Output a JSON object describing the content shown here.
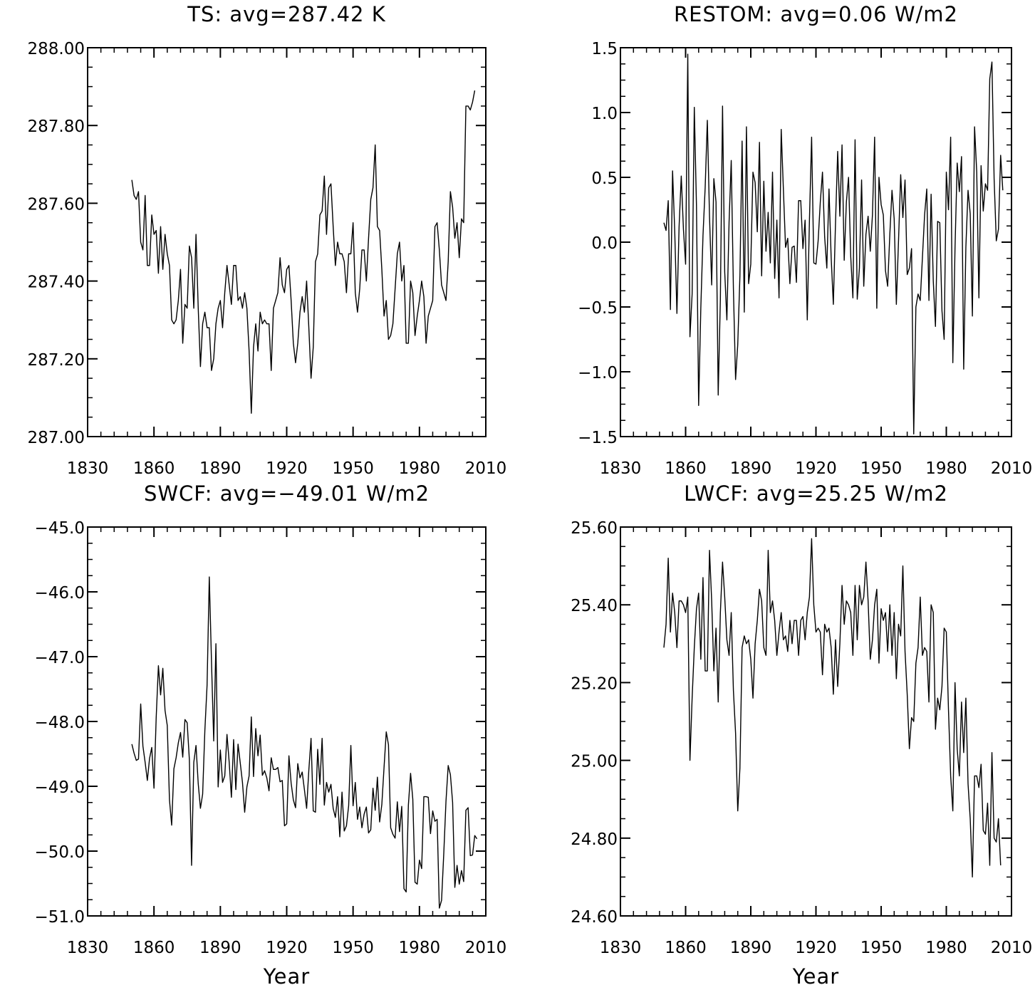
{
  "chart_data": [
    {
      "type": "line",
      "title": "TS: avg=287.42 K",
      "xlabel": "",
      "ylabel": "",
      "xlim": [
        1830,
        2010
      ],
      "ylim": [
        287.0,
        288.0
      ],
      "x_ticks": [
        "1830",
        "1860",
        "1890",
        "1920",
        "1950",
        "1980",
        "2010"
      ],
      "y_ticks": [
        "287.00",
        "287.20",
        "287.40",
        "287.60",
        "287.80",
        "288.00"
      ],
      "y_tick_values": [
        287.0,
        287.2,
        287.4,
        287.6,
        287.8,
        288.0
      ],
      "grid": false,
      "x_start": 1850,
      "values": [
        287.66,
        287.62,
        287.61,
        287.63,
        287.5,
        287.48,
        287.62,
        287.44,
        287.44,
        287.57,
        287.52,
        287.53,
        287.42,
        287.54,
        287.43,
        287.52,
        287.47,
        287.44,
        287.3,
        287.29,
        287.3,
        287.35,
        287.43,
        287.24,
        287.34,
        287.33,
        287.49,
        287.46,
        287.33,
        287.52,
        287.33,
        287.18,
        287.29,
        287.32,
        287.28,
        287.28,
        287.17,
        287.2,
        287.29,
        287.33,
        287.35,
        287.28,
        287.37,
        287.44,
        287.39,
        287.34,
        287.44,
        287.44,
        287.35,
        287.36,
        287.33,
        287.37,
        287.33,
        287.22,
        287.06,
        287.23,
        287.29,
        287.22,
        287.32,
        287.29,
        287.3,
        287.29,
        287.29,
        287.17,
        287.33,
        287.35,
        287.37,
        287.46,
        287.39,
        287.37,
        287.43,
        287.44,
        287.35,
        287.24,
        287.19,
        287.24,
        287.32,
        287.36,
        287.32,
        287.4,
        287.28,
        287.15,
        287.23,
        287.45,
        287.47,
        287.57,
        287.58,
        287.67,
        287.52,
        287.64,
        287.65,
        287.54,
        287.44,
        287.5,
        287.47,
        287.47,
        287.45,
        287.37,
        287.47,
        287.47,
        287.55,
        287.37,
        287.32,
        287.38,
        287.48,
        287.48,
        287.4,
        287.51,
        287.61,
        287.64,
        287.75,
        287.54,
        287.53,
        287.43,
        287.31,
        287.35,
        287.25,
        287.26,
        287.29,
        287.38,
        287.47,
        287.5,
        287.4,
        287.44,
        287.24,
        287.24,
        287.4,
        287.37,
        287.26,
        287.31,
        287.35,
        287.4,
        287.36,
        287.24,
        287.31,
        287.33,
        287.35,
        287.54,
        287.55,
        287.48,
        287.39,
        287.37,
        287.35,
        287.45,
        287.63,
        287.59,
        287.51,
        287.55,
        287.46,
        287.56,
        287.55,
        287.85,
        287.85,
        287.84,
        287.86,
        287.89
      ]
    },
    {
      "type": "line",
      "title": "RESTOM: avg=0.06 W/m2",
      "xlabel": "",
      "ylabel": "",
      "xlim": [
        1830,
        2010
      ],
      "ylim": [
        -1.5,
        1.5
      ],
      "x_ticks": [
        "1830",
        "1860",
        "1890",
        "1920",
        "1950",
        "1980",
        "2010"
      ],
      "y_ticks": [
        "−1.5",
        "−1.0",
        "−0.5",
        "0.0",
        "0.5",
        "1.0",
        "1.5"
      ],
      "y_tick_values": [
        -1.5,
        -1.0,
        -0.5,
        0.0,
        0.5,
        1.0,
        1.5
      ],
      "grid": false,
      "x_start": 1850,
      "values": [
        0.15,
        0.09,
        0.32,
        -0.52,
        0.55,
        0.08,
        -0.55,
        0.12,
        0.51,
        0.1,
        -0.17,
        1.45,
        -0.73,
        -0.4,
        1.04,
        0.28,
        -1.26,
        -0.51,
        0.05,
        0.42,
        0.94,
        0.2,
        -0.33,
        0.49,
        0.31,
        -1.18,
        -0.44,
        1.05,
        -0.23,
        -0.6,
        0.15,
        0.63,
        -0.36,
        -1.06,
        -0.79,
        -0.26,
        0.78,
        -0.54,
        0.89,
        -0.32,
        -0.17,
        0.54,
        0.46,
        0.08,
        0.77,
        -0.26,
        0.47,
        -0.07,
        0.23,
        -0.16,
        0.54,
        -0.28,
        0.17,
        -0.43,
        0.87,
        0.41,
        -0.04,
        0.03,
        -0.32,
        -0.04,
        -0.03,
        -0.31,
        0.32,
        0.32,
        -0.05,
        0.17,
        -0.6,
        0.17,
        0.81,
        -0.16,
        -0.17,
        0.01,
        0.31,
        0.54,
        0.04,
        -0.2,
        0.41,
        -0.12,
        -0.48,
        0.15,
        0.7,
        0.2,
        0.75,
        -0.14,
        0.31,
        0.5,
        -0.11,
        -0.43,
        0.79,
        -0.44,
        -0.2,
        0.48,
        -0.34,
        0.06,
        0.2,
        -0.07,
        0.21,
        0.81,
        -0.51,
        0.5,
        0.29,
        0.21,
        -0.22,
        -0.34,
        0.06,
        0.4,
        0.18,
        -0.48,
        0.01,
        0.52,
        0.19,
        0.48,
        -0.25,
        -0.2,
        -0.05,
        -1.48,
        -0.5,
        -0.4,
        -0.45,
        -0.12,
        0.21,
        0.41,
        -0.45,
        0.37,
        -0.3,
        -0.65,
        0.16,
        0.15,
        -0.53,
        -0.75,
        0.54,
        0.25,
        0.81,
        -0.93,
        -0.05,
        0.61,
        0.39,
        0.66,
        -0.98,
        -0.04,
        0.4,
        0.22,
        -0.57,
        0.89,
        0.54,
        -0.43,
        0.59,
        0.24,
        0.45,
        0.4,
        1.26,
        1.39,
        0.49,
        0.01,
        0.1,
        0.67,
        0.4
      ]
    },
    {
      "type": "line",
      "title": "SWCF: avg=−49.01 W/m2",
      "xlabel": "Year",
      "ylabel": "",
      "xlim": [
        1830,
        2010
      ],
      "ylim": [
        -51.0,
        -45.0
      ],
      "x_ticks": [
        "1830",
        "1860",
        "1890",
        "1920",
        "1950",
        "1980",
        "2010"
      ],
      "y_ticks": [
        "−51.0",
        "−50.0",
        "−49.0",
        "−48.0",
        "−47.0",
        "−46.0",
        "−45.0"
      ],
      "y_tick_values": [
        -51.0,
        -50.0,
        -49.0,
        -48.0,
        -47.0,
        -46.0,
        -45.0
      ],
      "grid": false,
      "x_start": 1850,
      "values": [
        -48.35,
        -48.49,
        -48.6,
        -48.58,
        -47.73,
        -48.38,
        -48.63,
        -48.91,
        -48.57,
        -48.4,
        -49.03,
        -47.94,
        -47.14,
        -47.59,
        -47.18,
        -47.83,
        -48.06,
        -49.21,
        -49.6,
        -48.73,
        -48.56,
        -48.33,
        -48.17,
        -48.55,
        -47.97,
        -48.02,
        -48.59,
        -50.22,
        -48.63,
        -48.37,
        -48.96,
        -49.34,
        -49.12,
        -48.14,
        -47.44,
        -45.77,
        -47.08,
        -48.3,
        -46.8,
        -49.01,
        -48.44,
        -48.94,
        -48.84,
        -48.2,
        -48.63,
        -49.17,
        -48.28,
        -49.05,
        -48.35,
        -48.64,
        -48.94,
        -49.4,
        -49.01,
        -48.84,
        -47.93,
        -48.85,
        -48.11,
        -48.53,
        -48.21,
        -48.83,
        -48.76,
        -48.87,
        -49.07,
        -48.56,
        -48.74,
        -48.74,
        -48.71,
        -48.93,
        -48.91,
        -49.61,
        -49.58,
        -48.53,
        -48.95,
        -49.21,
        -49.33,
        -48.65,
        -48.87,
        -48.78,
        -49.05,
        -49.34,
        -48.75,
        -48.26,
        -49.38,
        -49.4,
        -48.43,
        -48.97,
        -48.26,
        -49.29,
        -48.94,
        -49.09,
        -48.97,
        -49.34,
        -49.48,
        -49.16,
        -49.78,
        -49.09,
        -49.69,
        -49.61,
        -49.3,
        -48.37,
        -49.3,
        -48.94,
        -49.51,
        -49.32,
        -49.64,
        -49.43,
        -49.32,
        -49.72,
        -49.67,
        -49.03,
        -49.37,
        -48.86,
        -49.55,
        -49.28,
        -48.71,
        -48.16,
        -48.36,
        -49.64,
        -49.74,
        -49.8,
        -49.24,
        -49.7,
        -49.31,
        -50.58,
        -50.63,
        -49.29,
        -48.8,
        -49.2,
        -50.48,
        -50.51,
        -50.14,
        -50.27,
        -49.16,
        -49.16,
        -49.17,
        -49.73,
        -49.38,
        -49.54,
        -49.51,
        -50.88,
        -50.76,
        -50.04,
        -49.23,
        -48.68,
        -48.82,
        -49.25,
        -50.56,
        -50.22,
        -50.51,
        -50.3,
        -50.47,
        -49.37,
        -49.33,
        -50.07,
        -50.06,
        -49.76,
        -49.81
      ]
    },
    {
      "type": "line",
      "title": "LWCF: avg=25.25 W/m2",
      "xlabel": "Year",
      "ylabel": "",
      "xlim": [
        1830,
        2010
      ],
      "ylim": [
        24.6,
        25.6
      ],
      "x_ticks": [
        "1830",
        "1860",
        "1890",
        "1920",
        "1950",
        "1980",
        "2010"
      ],
      "y_ticks": [
        "24.60",
        "24.80",
        "25.00",
        "25.20",
        "25.40",
        "25.60"
      ],
      "y_tick_values": [
        24.6,
        24.8,
        25.0,
        25.2,
        25.4,
        25.6
      ],
      "grid": false,
      "x_start": 1850,
      "values": [
        25.29,
        25.35,
        25.52,
        25.33,
        25.43,
        25.38,
        25.29,
        25.41,
        25.41,
        25.4,
        25.38,
        25.42,
        25.0,
        25.16,
        25.29,
        25.39,
        25.43,
        25.26,
        25.47,
        25.23,
        25.23,
        25.54,
        25.41,
        25.23,
        25.34,
        25.15,
        25.38,
        25.51,
        25.42,
        25.31,
        25.27,
        25.38,
        25.18,
        25.07,
        24.87,
        24.98,
        25.29,
        25.32,
        25.3,
        25.31,
        25.26,
        25.16,
        25.3,
        25.36,
        25.44,
        25.41,
        25.29,
        25.27,
        25.54,
        25.38,
        25.41,
        25.36,
        25.27,
        25.33,
        25.38,
        25.31,
        25.32,
        25.28,
        25.36,
        25.3,
        25.36,
        25.36,
        25.27,
        25.36,
        25.37,
        25.31,
        25.38,
        25.42,
        25.57,
        25.4,
        25.33,
        25.34,
        25.33,
        25.22,
        25.35,
        25.33,
        25.34,
        25.29,
        25.17,
        25.31,
        25.19,
        25.3,
        25.45,
        25.35,
        25.41,
        25.4,
        25.38,
        25.27,
        25.45,
        25.31,
        25.45,
        25.4,
        25.42,
        25.51,
        25.41,
        25.26,
        25.31,
        25.4,
        25.44,
        25.25,
        25.39,
        25.36,
        25.38,
        25.28,
        25.4,
        25.27,
        25.38,
        25.21,
        25.35,
        25.32,
        25.5,
        25.28,
        25.17,
        25.03,
        25.11,
        25.1,
        25.25,
        25.29,
        25.42,
        25.27,
        25.29,
        25.28,
        25.15,
        25.4,
        25.38,
        25.08,
        25.16,
        25.13,
        25.19,
        25.34,
        25.33,
        25.13,
        24.96,
        24.87,
        25.2,
        25.03,
        24.96,
        25.15,
        25.02,
        25.16,
        24.94,
        24.85,
        24.7,
        24.96,
        24.96,
        24.93,
        24.99,
        24.82,
        24.81,
        24.89,
        24.73,
        25.02,
        24.8,
        24.79,
        24.85,
        24.73
      ]
    }
  ]
}
